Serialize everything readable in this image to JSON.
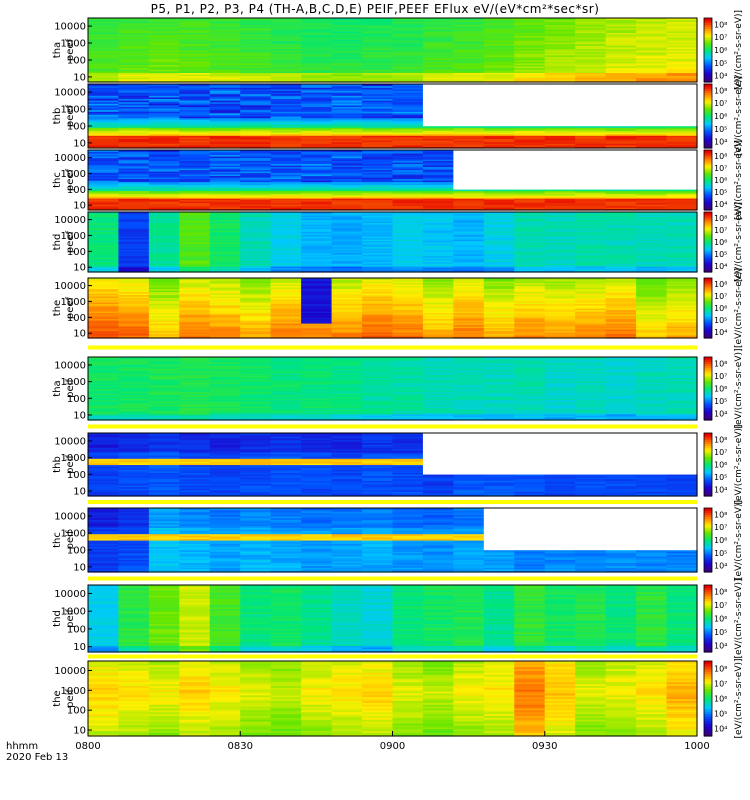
{
  "figure": {
    "title": "P5, P1, P2, P3, P4 (TH-A,B,C,D,E) PEIF,PEEF EFlux eV/(eV*cm²*sec*sr)",
    "x_units_label": "hhmm",
    "date_label": "2020 Feb 13",
    "x_tick_labels": [
      "0800",
      "0830",
      "0900",
      "0930",
      "1000"
    ],
    "y_tick_labels": [
      "10",
      "100",
      "1000",
      "10000"
    ],
    "colorbar_tick_labels": [
      "10⁴",
      "10⁵",
      "10⁶",
      "10⁷",
      "10⁸"
    ],
    "colorbar_label": "[eV/(cm²-s-sr-eV)]"
  },
  "chart_data": {
    "type": "heatmap",
    "x_range": [
      "0800",
      "1000"
    ],
    "y_scale": "log",
    "y_range_eV": [
      5,
      30000
    ],
    "colormap": "rainbow",
    "panels": [
      {
        "id": "tha-peef",
        "probe": "tha",
        "product": "peef",
        "level": [
          0.6,
          0.62,
          0.63,
          0.62,
          0.61,
          0.6,
          0.58,
          0.57,
          0.56,
          0.57,
          0.58,
          0.6,
          0.61,
          0.63,
          0.66,
          0.68,
          0.7,
          0.72,
          0.73,
          0.74
        ],
        "profile": "flat_gradient",
        "cb_min": 4,
        "cb_max": 8
      },
      {
        "id": "thb-peef",
        "probe": "thb",
        "product": "peef",
        "level": [
          0.4,
          0.42,
          0.41,
          0.43,
          0.4,
          0.42,
          0.41,
          0.43,
          0.42,
          0.41,
          0.44,
          0.4,
          0.42,
          0.41,
          0.43,
          0.42,
          0.41,
          0.43,
          0.42,
          0.41
        ],
        "profile": "electron_cold",
        "gap_from": 0.53,
        "cb_min": 4,
        "cb_max": 8
      },
      {
        "id": "thc-peef",
        "probe": "thc",
        "product": "peef",
        "level": [
          0.4,
          0.42,
          0.41,
          0.43,
          0.4,
          0.42,
          0.41,
          0.43,
          0.42,
          0.41,
          0.44,
          0.4,
          0.42,
          0.41,
          0.43,
          0.42,
          0.41,
          0.43,
          0.42,
          0.41
        ],
        "profile": "electron_cold",
        "gap_from": 0.58,
        "cb_min": 4,
        "cb_max": 8
      },
      {
        "id": "thd-peef",
        "probe": "thd",
        "product": "peef",
        "level": [
          0.5,
          0.22,
          0.48,
          0.6,
          0.52,
          0.45,
          0.4,
          0.36,
          0.35,
          0.37,
          0.4,
          0.38,
          0.36,
          0.4,
          0.45,
          0.44,
          0.46,
          0.45,
          0.44,
          0.45
        ],
        "profile": "flat",
        "cb_min": 4,
        "cb_max": 8
      },
      {
        "id": "the-peef",
        "probe": "the",
        "product": "peef",
        "level": [
          0.92,
          0.9,
          0.8,
          0.88,
          0.86,
          0.82,
          0.88,
          0.2,
          0.86,
          0.9,
          0.88,
          0.82,
          0.88,
          0.82,
          0.86,
          0.84,
          0.86,
          0.88,
          0.78,
          0.82
        ],
        "profile": "banded",
        "cb_min": 4,
        "cb_max": 8
      },
      {
        "id": "tha-peif",
        "probe": "tha",
        "product": "peif",
        "level": [
          0.52,
          0.52,
          0.53,
          0.54,
          0.52,
          0.51,
          0.5,
          0.5,
          0.49,
          0.47,
          0.46,
          0.45,
          0.44,
          0.44,
          0.45,
          0.43,
          0.44,
          0.42,
          0.44,
          0.45
        ],
        "profile": "flat",
        "cb_min": 4,
        "cb_max": 8
      },
      {
        "id": "thb-peif",
        "probe": "thb",
        "product": "peif",
        "level": [
          0.22,
          0.24,
          0.25,
          0.24,
          0.23,
          0.24,
          0.25,
          0.24,
          0.23,
          0.25,
          0.24,
          0.22,
          0.26,
          0.25,
          0.24,
          0.23,
          0.25,
          0.24,
          0.23,
          0.22
        ],
        "profile": "ion_mid_band",
        "gap_from": 0.55,
        "cb_min": 4,
        "cb_max": 8
      },
      {
        "id": "thc-peif",
        "probe": "thc",
        "product": "peif",
        "level": [
          0.22,
          0.24,
          0.38,
          0.36,
          0.34,
          0.36,
          0.35,
          0.33,
          0.34,
          0.35,
          0.33,
          0.32,
          0.34,
          0.33,
          0.3,
          0.31,
          0.3,
          0.32,
          0.31,
          0.3
        ],
        "profile": "ion_mid_band",
        "gap_from": 0.605,
        "cb_min": 4,
        "cb_max": 8
      },
      {
        "id": "thd-peif",
        "probe": "thd",
        "product": "peif",
        "level": [
          0.4,
          0.55,
          0.62,
          0.7,
          0.58,
          0.5,
          0.52,
          0.48,
          0.44,
          0.42,
          0.5,
          0.52,
          0.54,
          0.48,
          0.56,
          0.52,
          0.54,
          0.5,
          0.55,
          0.5
        ],
        "profile": "flat",
        "cb_min": 4,
        "cb_max": 8
      },
      {
        "id": "the-peif",
        "probe": "the",
        "product": "peif",
        "level": [
          0.78,
          0.76,
          0.74,
          0.78,
          0.75,
          0.72,
          0.7,
          0.74,
          0.76,
          0.78,
          0.72,
          0.7,
          0.74,
          0.76,
          0.88,
          0.8,
          0.72,
          0.74,
          0.76,
          0.82
        ],
        "profile": "warm",
        "cb_min": 4,
        "cb_max": 8
      }
    ]
  }
}
